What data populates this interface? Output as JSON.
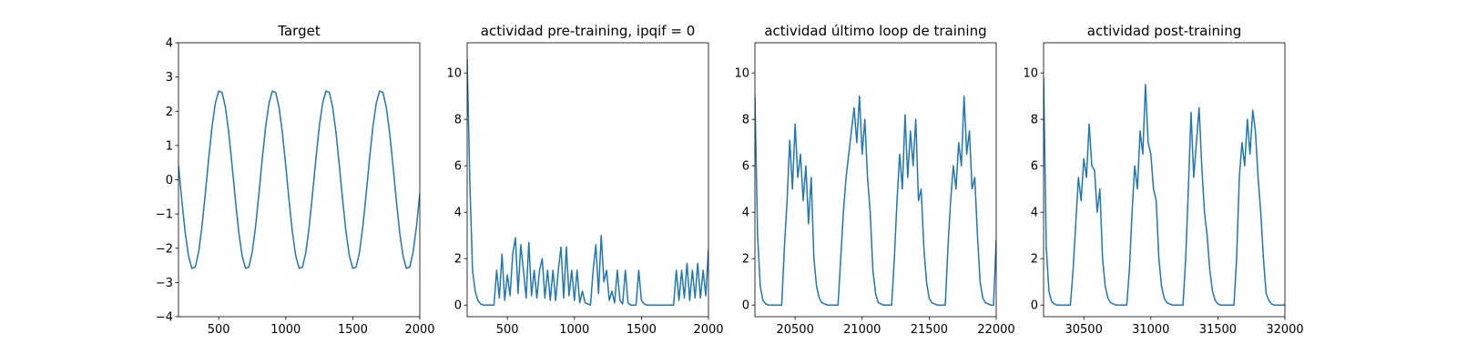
{
  "chart_data": [
    {
      "type": "line",
      "title": "Target",
      "color": "#1f77b4",
      "x": [
        200,
        225,
        250,
        275,
        300,
        325,
        350,
        375,
        400,
        425,
        450,
        475,
        500,
        525,
        550,
        575,
        600,
        625,
        650,
        675,
        700,
        725,
        750,
        775,
        800,
        825,
        850,
        875,
        900,
        925,
        950,
        975,
        1000,
        1025,
        1050,
        1075,
        1100,
        1125,
        1150,
        1175,
        1200,
        1225,
        1250,
        1275,
        1300,
        1325,
        1350,
        1375,
        1400,
        1425,
        1450,
        1475,
        1500,
        1525,
        1550,
        1575,
        1600,
        1625,
        1650,
        1675,
        1700,
        1725,
        1750,
        1775,
        1800,
        1825,
        1850,
        1875,
        1900,
        1925,
        1950,
        1975,
        2000
      ],
      "values": [
        0.41,
        -0.61,
        -1.54,
        -2.23,
        -2.59,
        -2.55,
        -2.12,
        -1.37,
        -0.41,
        0.61,
        1.54,
        2.23,
        2.59,
        2.55,
        2.12,
        1.37,
        0.41,
        -0.61,
        -1.54,
        -2.23,
        -2.59,
        -2.55,
        -2.12,
        -1.37,
        -0.41,
        0.61,
        1.54,
        2.23,
        2.59,
        2.55,
        2.12,
        1.37,
        0.41,
        -0.61,
        -1.54,
        -2.23,
        -2.59,
        -2.55,
        -2.12,
        -1.37,
        -0.41,
        0.61,
        1.54,
        2.23,
        2.59,
        2.55,
        2.12,
        1.37,
        0.41,
        -0.61,
        -1.54,
        -2.23,
        -2.59,
        -2.55,
        -2.12,
        -1.37,
        -0.41,
        0.61,
        1.54,
        2.23,
        2.59,
        2.55,
        2.12,
        1.37,
        0.41,
        -0.61,
        -1.54,
        -2.23,
        -2.59,
        -2.55,
        -2.12,
        -1.37,
        -0.41
      ],
      "xlim": [
        200,
        2000
      ],
      "xticks": [
        500,
        1000,
        1500,
        2000
      ],
      "ylim": [
        -4,
        4
      ],
      "yticks": [
        {
          "value": -4,
          "label": "−4"
        },
        {
          "value": -3,
          "label": "−3"
        },
        {
          "value": -2,
          "label": "−2"
        },
        {
          "value": -1,
          "label": "−1"
        },
        0,
        1,
        2,
        3,
        4
      ]
    },
    {
      "type": "line",
      "title": "actividad pre-training, ipqif = 0",
      "color": "#1f77b4",
      "x": [
        200,
        220,
        240,
        260,
        280,
        300,
        320,
        340,
        360,
        380,
        400,
        420,
        440,
        460,
        480,
        500,
        520,
        540,
        560,
        580,
        600,
        620,
        640,
        660,
        680,
        700,
        720,
        740,
        760,
        780,
        800,
        820,
        840,
        860,
        880,
        900,
        920,
        940,
        960,
        980,
        1000,
        1020,
        1040,
        1060,
        1080,
        1100,
        1120,
        1140,
        1160,
        1180,
        1200,
        1220,
        1240,
        1260,
        1280,
        1300,
        1320,
        1340,
        1360,
        1380,
        1400,
        1420,
        1440,
        1460,
        1480,
        1500,
        1520,
        1540,
        1560,
        1580,
        1600,
        1620,
        1640,
        1660,
        1680,
        1700,
        1720,
        1740,
        1760,
        1780,
        1800,
        1820,
        1840,
        1860,
        1880,
        1900,
        1920,
        1940,
        1960,
        1980,
        2000
      ],
      "values": [
        10.6,
        5.3,
        1.5,
        0.6,
        0.2,
        0.05,
        0,
        0,
        0,
        0,
        0,
        1.5,
        0.3,
        2.2,
        0.2,
        1.3,
        0.4,
        2.2,
        2.9,
        0.5,
        2.6,
        1.5,
        0.3,
        2.7,
        0.4,
        1.5,
        0.3,
        1.5,
        2.0,
        0.3,
        1.5,
        0.2,
        1.5,
        0.2,
        1.5,
        2.5,
        0.3,
        2.5,
        0.4,
        1.5,
        0.2,
        1.5,
        0.1,
        0.6,
        0.1,
        0.05,
        0,
        1.5,
        2.6,
        0.5,
        3.0,
        1.0,
        1.5,
        0.2,
        0.6,
        0.1,
        1.5,
        0.2,
        0.05,
        1.5,
        0.1,
        0,
        0,
        0,
        1.5,
        0.2,
        0.05,
        0,
        0,
        0,
        0,
        0,
        0,
        0,
        0,
        0,
        0,
        0,
        1.5,
        0.2,
        1.5,
        0.3,
        1.8,
        0.2,
        1.5,
        0.3,
        1.8,
        0.3,
        1.5,
        0.4,
        2.4
      ],
      "xlim": [
        200,
        2000
      ],
      "xticks": [
        500,
        1000,
        1500,
        2000
      ],
      "ylim": [
        -0.5,
        11.3
      ],
      "yticks": [
        0,
        2,
        4,
        6,
        8,
        10
      ]
    },
    {
      "type": "line",
      "title": "actividad último loop de training",
      "color": "#1f77b4",
      "x": [
        20200,
        20220,
        20240,
        20260,
        20280,
        20300,
        20320,
        20340,
        20360,
        20380,
        20400,
        20420,
        20440,
        20460,
        20480,
        20500,
        20520,
        20540,
        20560,
        20580,
        20600,
        20620,
        20640,
        20660,
        20680,
        20700,
        20720,
        20740,
        20760,
        20780,
        20800,
        20820,
        20840,
        20860,
        20880,
        20900,
        20920,
        20940,
        20960,
        20980,
        21000,
        21020,
        21040,
        21060,
        21080,
        21100,
        21120,
        21140,
        21160,
        21180,
        21200,
        21220,
        21240,
        21260,
        21280,
        21300,
        21320,
        21340,
        21360,
        21380,
        21400,
        21420,
        21440,
        21460,
        21480,
        21500,
        21520,
        21540,
        21560,
        21580,
        21600,
        21620,
        21640,
        21660,
        21680,
        21700,
        21720,
        21740,
        21760,
        21780,
        21800,
        21820,
        21840,
        21860,
        21880,
        21900,
        21920,
        21940,
        21960,
        21980,
        22000
      ],
      "values": [
        9.0,
        3.0,
        0.8,
        0.2,
        0.05,
        0,
        0,
        0,
        0,
        0,
        0,
        2.5,
        4.5,
        7.1,
        5.0,
        7.8,
        5.5,
        6.5,
        4.5,
        6.0,
        3.5,
        5.5,
        2.0,
        0.8,
        0.3,
        0.1,
        0.05,
        0,
        0,
        0,
        0,
        0,
        2.0,
        4.0,
        5.5,
        6.5,
        7.5,
        8.5,
        7.0,
        9.0,
        6.5,
        8.0,
        5.5,
        4.0,
        1.5,
        0.5,
        0.1,
        0.05,
        0,
        0,
        0,
        0,
        2.0,
        4.5,
        6.5,
        5.0,
        8.2,
        5.5,
        7.5,
        6.0,
        8.0,
        4.5,
        5.0,
        2.5,
        1.0,
        0.3,
        0.1,
        0.05,
        0,
        0,
        0,
        0,
        2.5,
        4.5,
        6.0,
        5.0,
        7.0,
        6.0,
        9.0,
        6.5,
        7.5,
        5.0,
        5.5,
        3.0,
        1.0,
        0.3,
        0.1,
        0.05,
        0,
        0,
        2.8
      ],
      "xlim": [
        20200,
        22000
      ],
      "xticks": [
        20500,
        21000,
        21500,
        22000
      ],
      "ylim": [
        -0.5,
        11.3
      ],
      "yticks": [
        0,
        2,
        4,
        6,
        8,
        10
      ]
    },
    {
      "type": "line",
      "title": "actividad post-training",
      "color": "#1f77b4",
      "x": [
        30200,
        30220,
        30240,
        30260,
        30280,
        30300,
        30320,
        30340,
        30360,
        30380,
        30400,
        30420,
        30440,
        30460,
        30480,
        30500,
        30520,
        30540,
        30560,
        30580,
        30600,
        30620,
        30640,
        30660,
        30680,
        30700,
        30720,
        30740,
        30760,
        30780,
        30800,
        30820,
        30840,
        30860,
        30880,
        30900,
        30920,
        30940,
        30960,
        30980,
        31000,
        31020,
        31040,
        31060,
        31080,
        31100,
        31120,
        31140,
        31160,
        31180,
        31200,
        31220,
        31240,
        31260,
        31280,
        31300,
        31320,
        31340,
        31360,
        31380,
        31400,
        31420,
        31440,
        31460,
        31480,
        31500,
        31520,
        31540,
        31560,
        31580,
        31600,
        31620,
        31640,
        31660,
        31680,
        31700,
        31720,
        31740,
        31760,
        31780,
        31800,
        31820,
        31840,
        31860,
        31880,
        31900,
        31920,
        31940,
        31960,
        31980,
        32000
      ],
      "values": [
        9.8,
        2.5,
        0.6,
        0.15,
        0.05,
        0,
        0,
        0,
        0,
        0,
        0,
        1.5,
        3.5,
        5.5,
        4.5,
        6.3,
        5.5,
        7.8,
        6.0,
        5.8,
        4.0,
        5.0,
        2.0,
        0.8,
        0.3,
        0.1,
        0.05,
        0,
        0,
        0,
        0,
        0,
        1.5,
        4.0,
        6.0,
        5.0,
        7.5,
        6.5,
        9.5,
        7.0,
        6.5,
        5.0,
        4.5,
        2.0,
        0.8,
        0.3,
        0.1,
        0.05,
        0,
        0,
        0,
        0,
        0,
        2.0,
        5.0,
        8.3,
        5.5,
        7.0,
        8.5,
        6.0,
        4.0,
        3.0,
        1.5,
        0.6,
        0.2,
        0.05,
        0,
        0,
        0,
        0,
        0,
        0,
        2.0,
        5.5,
        7.0,
        6.0,
        8.0,
        6.5,
        8.4,
        7.5,
        5.5,
        4.0,
        2.0,
        0.5,
        0.2,
        0.05,
        0,
        0,
        0,
        0,
        0
      ],
      "xlim": [
        30200,
        32000
      ],
      "xticks": [
        30500,
        31000,
        31500,
        32000
      ],
      "ylim": [
        -0.5,
        11.3
      ],
      "yticks": [
        0,
        2,
        4,
        6,
        8,
        10
      ]
    }
  ]
}
